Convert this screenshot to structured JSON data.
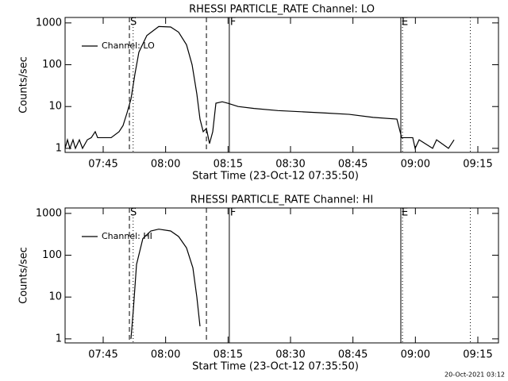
{
  "chart_data": [
    {
      "type": "line",
      "title": "RHESSI PARTICLE_RATE Channel: LO",
      "y_label": "Counts/sec",
      "x_label": "Start Time (23-Oct-12 07:35:50)",
      "x": [
        455.85,
        456.42,
        457.0,
        457.75,
        458.33,
        459.28,
        460.04,
        461.19,
        462.14,
        463.09,
        463.67,
        466.91,
        468.81,
        469.77,
        470.72,
        471.67,
        472.63,
        473.58,
        475.49,
        478.35,
        481.21,
        483.12,
        485.02,
        486.36,
        487.5,
        488.26,
        489.03,
        489.79,
        490.55,
        491.32,
        492.08,
        493.6,
        494.94,
        497.42,
        501.23,
        506.95,
        512.67,
        518.39,
        524.11,
        529.84,
        535.56,
        536.13,
        536.7,
        539.37,
        539.94,
        540.9,
        544.14,
        545.09,
        547.95,
        549.29
      ],
      "series": [
        {
          "name": "Channel: LO",
          "color": "#000000",
          "values": [
            1,
            1.6,
            1,
            1.6,
            1,
            1.6,
            1,
            1.6,
            1.8,
            2.5,
            1.8,
            1.8,
            2.5,
            3.5,
            7,
            15,
            60,
            200,
            500,
            820,
            800,
            600,
            300,
            100,
            20,
            5,
            2.5,
            3,
            1.3,
            2.5,
            12,
            13,
            12,
            10,
            9,
            8,
            7.5,
            7,
            6.5,
            5.5,
            5,
            3,
            1.8,
            1.8,
            1,
            1.6,
            1,
            1.6,
            1,
            1.6
          ]
        }
      ],
      "xlim": [
        455.85,
        559.96
      ],
      "xticks": [
        {
          "value": 465,
          "label": "07:45"
        },
        {
          "value": 480,
          "label": "08:00"
        },
        {
          "value": 495,
          "label": "08:15"
        },
        {
          "value": 510,
          "label": "08:30"
        },
        {
          "value": 525,
          "label": "08:45"
        },
        {
          "value": 540,
          "label": "09:00"
        },
        {
          "value": 555,
          "label": "09:15"
        }
      ],
      "ylim": [
        0.8,
        1350
      ],
      "yticks": [
        1,
        10,
        100,
        1000
      ],
      "ylog": true,
      "legend": "top-left",
      "vlines": [
        {
          "x": 471.3,
          "style": "dashed",
          "label": "S"
        },
        {
          "x": 472.2,
          "style": "dotted"
        },
        {
          "x": 489.8,
          "style": "dashed"
        },
        {
          "x": 495.3,
          "style": "solid",
          "label": "F"
        },
        {
          "x": 536.5,
          "style": "solid",
          "label": "E"
        },
        {
          "x": 536.9,
          "style": "dotted"
        },
        {
          "x": 553.2,
          "style": "dotted"
        }
      ]
    },
    {
      "type": "line",
      "title": "RHESSI PARTICLE_RATE Channel: HI",
      "y_label": "Counts/sec",
      "x_label": "Start Time (23-Oct-12 07:35:50)",
      "x": [
        471.67,
        472.25,
        473.01,
        474.53,
        476.44,
        478.35,
        481.21,
        483.12,
        485.02,
        486.55,
        487.5,
        488.26
      ],
      "series": [
        {
          "name": "Channel: HI",
          "color": "#000000",
          "values": [
            1,
            5,
            60,
            250,
            380,
            420,
            380,
            280,
            150,
            50,
            10,
            2
          ]
        }
      ],
      "xlim": [
        455.85,
        559.96
      ],
      "xticks": [
        {
          "value": 465,
          "label": "07:45"
        },
        {
          "value": 480,
          "label": "08:00"
        },
        {
          "value": 495,
          "label": "08:15"
        },
        {
          "value": 510,
          "label": "08:30"
        },
        {
          "value": 525,
          "label": "08:45"
        },
        {
          "value": 540,
          "label": "09:00"
        },
        {
          "value": 555,
          "label": "09:15"
        }
      ],
      "ylim": [
        0.8,
        1350
      ],
      "yticks": [
        1,
        10,
        100,
        1000
      ],
      "ylog": true,
      "legend": "top-left",
      "vlines": [
        {
          "x": 471.3,
          "style": "dashed",
          "label": "S"
        },
        {
          "x": 472.2,
          "style": "dotted"
        },
        {
          "x": 489.8,
          "style": "dashed"
        },
        {
          "x": 495.3,
          "style": "solid",
          "label": "F"
        },
        {
          "x": 536.5,
          "style": "solid",
          "label": "E"
        },
        {
          "x": 536.9,
          "style": "dotted"
        },
        {
          "x": 553.2,
          "style": "dotted"
        }
      ]
    }
  ],
  "timestamp": "20-Oct-2021 03:12"
}
